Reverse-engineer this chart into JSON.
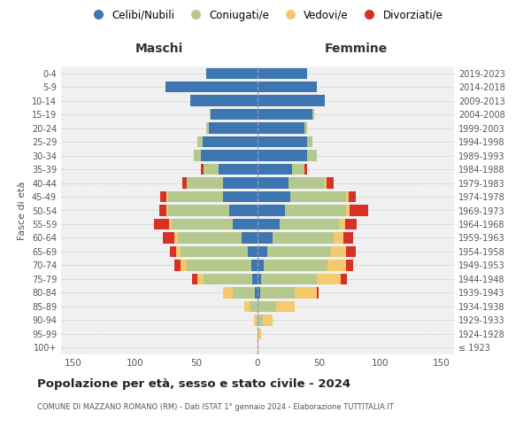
{
  "age_groups": [
    "100+",
    "95-99",
    "90-94",
    "85-89",
    "80-84",
    "75-79",
    "70-74",
    "65-69",
    "60-64",
    "55-59",
    "50-54",
    "45-49",
    "40-44",
    "35-39",
    "30-34",
    "25-29",
    "20-24",
    "15-19",
    "10-14",
    "5-9",
    "0-4"
  ],
  "birth_years": [
    "≤ 1923",
    "1924-1928",
    "1929-1933",
    "1934-1938",
    "1939-1943",
    "1944-1948",
    "1949-1953",
    "1954-1958",
    "1959-1963",
    "1964-1968",
    "1969-1973",
    "1974-1978",
    "1979-1983",
    "1984-1988",
    "1989-1993",
    "1994-1998",
    "1999-2003",
    "2004-2008",
    "2009-2013",
    "2014-2018",
    "2019-2023"
  ],
  "colors": {
    "celibi": "#3d76b0",
    "coniugati": "#b5c98e",
    "vedovi": "#f5c96e",
    "divorziati": "#d73027"
  },
  "maschi": {
    "celibi": [
      0,
      0,
      0,
      0,
      2,
      4,
      5,
      8,
      13,
      20,
      23,
      28,
      28,
      32,
      46,
      45,
      40,
      38,
      55,
      75,
      42
    ],
    "coniugati": [
      0,
      0,
      1,
      6,
      18,
      40,
      53,
      55,
      52,
      50,
      50,
      45,
      30,
      12,
      6,
      4,
      2,
      1,
      0,
      0,
      0
    ],
    "vedovi": [
      0,
      0,
      2,
      5,
      8,
      5,
      5,
      3,
      3,
      2,
      1,
      1,
      0,
      0,
      0,
      0,
      0,
      0,
      0,
      0,
      0
    ],
    "divorziati": [
      0,
      0,
      0,
      0,
      0,
      4,
      5,
      5,
      9,
      12,
      6,
      5,
      3,
      2,
      0,
      0,
      0,
      0,
      0,
      0,
      0
    ]
  },
  "femmine": {
    "celibi": [
      0,
      0,
      0,
      0,
      2,
      3,
      5,
      8,
      12,
      18,
      22,
      27,
      25,
      28,
      40,
      40,
      38,
      45,
      55,
      48,
      40
    ],
    "coniugati": [
      0,
      1,
      4,
      15,
      28,
      45,
      52,
      52,
      50,
      48,
      50,
      45,
      30,
      10,
      8,
      5,
      2,
      1,
      0,
      0,
      0
    ],
    "vedovi": [
      1,
      2,
      8,
      15,
      18,
      20,
      15,
      12,
      8,
      5,
      3,
      2,
      1,
      0,
      0,
      0,
      0,
      0,
      0,
      0,
      0
    ],
    "divorziati": [
      0,
      0,
      0,
      0,
      2,
      5,
      6,
      8,
      8,
      10,
      15,
      6,
      6,
      2,
      0,
      0,
      0,
      0,
      0,
      0,
      0
    ]
  },
  "title": "Popolazione per età, sesso e stato civile - 2024",
  "subtitle": "COMUNE DI MAZZANO ROMANO (RM) - Dati ISTAT 1° gennaio 2024 - Elaborazione TUTTITALIA.IT",
  "xlabel_maschi": "Maschi",
  "xlabel_femmine": "Femmine",
  "ylabel_left": "Fasce di età",
  "xlim": 160,
  "legend_labels": [
    "Celibi/Nubili",
    "Coniugati/e",
    "Vedovi/e",
    "Divorziati/e"
  ],
  "background_color": "#ffffff"
}
